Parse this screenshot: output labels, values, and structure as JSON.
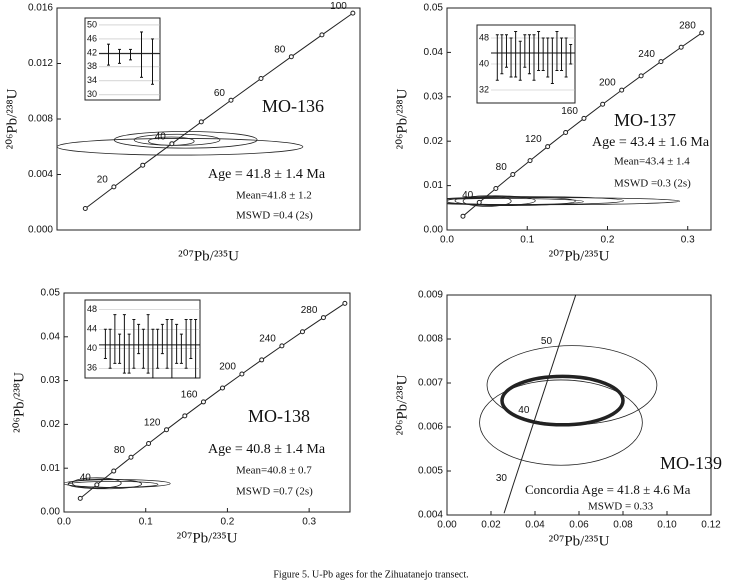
{
  "caption": "Figure 5. U-Pb ages for the Zihuatanejo transect.",
  "chart_data": [
    {
      "type": "concordia",
      "title": "MO-136",
      "xlabel": "²⁰⁷Pb/²³⁵U",
      "ylabel": "²⁰⁶Pb/²³⁸U",
      "annotations": [
        "Age = 41.8 ± 1.4 Ma",
        "Mean=41.8 ± 1.2",
        "MSWD =0.4 (2s)"
      ],
      "xlim": [
        0,
        0.106
      ],
      "ylim": [
        0,
        0.016
      ],
      "yticks": [
        {
          "value": 0,
          "label": "0.000"
        },
        {
          "value": 0.004,
          "label": "0.004"
        },
        {
          "value": 0.008,
          "label": "0.008"
        },
        {
          "value": 0.012,
          "label": "0.012"
        },
        {
          "value": 0.016,
          "label": "0.016"
        }
      ],
      "concordia": {
        "markers": true,
        "x": [
          0.0099,
          0.01989,
          0.02999,
          0.04018,
          0.05048,
          0.06087,
          0.07137,
          0.08198,
          0.09268,
          0.1035
        ],
        "y": [
          0.00155,
          0.00311,
          0.00467,
          0.00622,
          0.00779,
          0.00935,
          0.01092,
          0.01249,
          0.01406,
          0.01563
        ],
        "labels": [
          null,
          20,
          null,
          40,
          null,
          60,
          null,
          80,
          null,
          100
        ]
      },
      "ellipses": [
        {
          "cx": 0.043,
          "cy": 0.006,
          "rx": 0.043,
          "ry": 0.0006,
          "bold": false
        },
        {
          "cx": 0.045,
          "cy": 0.0065,
          "rx": 0.025,
          "ry": 0.0006,
          "bold": false
        },
        {
          "cx": 0.042,
          "cy": 0.0065,
          "rx": 0.015,
          "ry": 0.0004,
          "bold": false
        },
        {
          "cx": 0.04,
          "cy": 0.0064,
          "rx": 0.008,
          "ry": 0.0003,
          "bold": false
        }
      ],
      "inset": {
        "ylim": [
          28.5,
          52
        ],
        "yticks": [
          30,
          34,
          38,
          42,
          46,
          50
        ],
        "mean": 41.8,
        "values": [
          41.5,
          41,
          41.5,
          41.5,
          39.5
        ],
        "errors": [
          3,
          2,
          1.5,
          6.5,
          6.5
        ]
      }
    },
    {
      "type": "concordia",
      "title": "MO-137",
      "xlabel": "²⁰⁷Pb/²³⁵U",
      "ylabel": "²⁰⁶Pb/²³⁸U",
      "annotations": [
        "Age = 43.4 ± 1.6 Ma",
        "Mean=43.4 ± 1.4",
        "MSWD =0.3 (2s)"
      ],
      "xlim": [
        0,
        0.329
      ],
      "ylim": [
        0,
        0.05
      ],
      "xticks": [
        {
          "value": 0,
          "label": "0.0"
        },
        0.1,
        0.2,
        0.3
      ],
      "yticks": [
        {
          "value": 0,
          "label": "0.00"
        },
        0.01,
        0.02,
        0.03,
        0.04,
        0.05
      ],
      "concordia": {
        "markers": true,
        "x": [
          0.01989,
          0.04018,
          0.06087,
          0.08198,
          0.1035,
          0.12545,
          0.14784,
          0.17067,
          0.19396,
          0.2177,
          0.24191,
          0.26664,
          0.29183,
          0.31751
        ],
        "y": [
          0.00311,
          0.00622,
          0.00935,
          0.01249,
          0.01563,
          0.01879,
          0.02196,
          0.02513,
          0.02832,
          0.03151,
          0.03472,
          0.03793,
          0.04116,
          0.04439
        ],
        "labels": [
          null,
          40,
          null,
          80,
          null,
          120,
          null,
          160,
          null,
          200,
          null,
          240,
          null,
          280
        ]
      },
      "ellipses": [
        {
          "cx": 0.12,
          "cy": 0.0065,
          "rx": 0.17,
          "ry": 0.0008,
          "bold": false
        },
        {
          "cx": 0.1,
          "cy": 0.0066,
          "rx": 0.12,
          "ry": 0.0009,
          "bold": false
        },
        {
          "cx": 0.08,
          "cy": 0.0065,
          "rx": 0.08,
          "ry": 0.001,
          "bold": false
        },
        {
          "cx": 0.06,
          "cy": 0.0066,
          "rx": 0.05,
          "ry": 0.0011,
          "bold": false
        },
        {
          "cx": 0.05,
          "cy": 0.0065,
          "rx": 0.03,
          "ry": 0.0012,
          "bold": false
        },
        {
          "cx": 0.07,
          "cy": 0.0064,
          "rx": 0.1,
          "ry": 0.0007,
          "bold": false
        }
      ],
      "inset": {
        "ylim": [
          28,
          52
        ],
        "yticks": [
          32,
          40,
          48
        ],
        "mean": 43.4,
        "values": [
          42,
          43,
          44,
          42,
          43,
          41,
          44,
          43,
          42,
          44,
          43,
          42,
          41,
          44,
          43,
          42,
          43
        ],
        "errors": [
          7,
          6,
          5,
          6,
          7,
          6,
          5,
          6,
          7,
          6,
          5,
          6,
          7,
          6,
          5,
          6,
          3
        ]
      }
    },
    {
      "type": "concordia",
      "title": "MO-138",
      "xlabel": "²⁰⁷Pb/²³⁵U",
      "ylabel": "²⁰⁶Pb/²³⁸U",
      "annotations": [
        "Age = 40.8 ± 1.4 Ma",
        "Mean=40.8 ± 0.7",
        "MSWD =0.7 (2s)"
      ],
      "xlim": [
        0,
        0.35
      ],
      "ylim": [
        0,
        0.05
      ],
      "xticks": [
        {
          "value": 0,
          "label": "0.0"
        },
        0.1,
        0.2,
        0.3
      ],
      "yticks": [
        {
          "value": 0,
          "label": "0.00"
        },
        0.01,
        0.02,
        0.03,
        0.04,
        0.05
      ],
      "concordia": {
        "markers": true,
        "x": [
          0.01989,
          0.04018,
          0.06087,
          0.08198,
          0.1035,
          0.12545,
          0.14784,
          0.17067,
          0.19396,
          0.2177,
          0.24191,
          0.26664,
          0.29183,
          0.31751,
          0.34374
        ],
        "y": [
          0.00311,
          0.00622,
          0.00935,
          0.01249,
          0.01563,
          0.01879,
          0.02196,
          0.02513,
          0.02832,
          0.03151,
          0.03472,
          0.03793,
          0.04116,
          0.04439,
          0.04764
        ],
        "labels": [
          null,
          40,
          null,
          80,
          null,
          120,
          null,
          160,
          null,
          200,
          null,
          240,
          null,
          280,
          null
        ]
      },
      "ellipses": [
        {
          "cx": 0.065,
          "cy": 0.0065,
          "rx": 0.065,
          "ry": 0.0009,
          "bold": false
        },
        {
          "cx": 0.05,
          "cy": 0.0064,
          "rx": 0.045,
          "ry": 0.0011,
          "bold": false
        },
        {
          "cx": 0.04,
          "cy": 0.0066,
          "rx": 0.03,
          "ry": 0.0012,
          "bold": false
        },
        {
          "cx": 0.06,
          "cy": 0.0063,
          "rx": 0.055,
          "ry": 0.0007,
          "bold": false
        }
      ],
      "inset": {
        "ylim": [
          34,
          50
        ],
        "yticks": [
          36,
          40,
          44,
          48
        ],
        "mean": 40.8,
        "values": [
          41,
          40,
          42,
          40,
          41,
          39,
          41,
          42,
          40,
          41,
          39,
          40,
          42,
          41,
          40,
          41,
          40,
          41,
          42,
          40
        ],
        "errors": [
          3,
          4,
          5,
          3,
          6,
          4,
          5,
          3,
          4,
          6,
          5,
          4,
          3,
          5,
          6,
          4,
          3,
          5,
          4,
          6
        ]
      }
    },
    {
      "type": "concordia",
      "title": "MO-139",
      "xlabel": "²⁰⁷Pb/²³⁵U",
      "ylabel": "²⁰⁶Pb/²³⁸U",
      "annotations": [
        "Concordia Age = 41.8 ± 4.6 Ma",
        "MSWD = 0.33"
      ],
      "xlim": [
        0,
        0.12
      ],
      "ylim": [
        0.004,
        0.009
      ],
      "xticks": [
        {
          "value": 0,
          "label": "0.00"
        },
        0.02,
        0.04,
        0.06,
        0.08,
        {
          "value": 0.1,
          "label": "0.10"
        },
        0.12
      ],
      "yticks": [
        0.004,
        0.005,
        0.006,
        0.007,
        0.008,
        0.009
      ],
      "concordia": {
        "markers": false,
        "x": [
          0.02594,
          0.02999,
          0.04018,
          0.05048,
          0.05878
        ],
        "y": [
          0.00404,
          0.00467,
          0.00622,
          0.00779,
          0.00904
        ],
        "labels": [
          null,
          30,
          40,
          50,
          null
        ]
      },
      "ellipses": [
        {
          "cx": 0.0568,
          "cy": 0.00695,
          "rx": 0.0386,
          "ry": 0.0009,
          "bold": false
        },
        {
          "cx": 0.0518,
          "cy": 0.0061,
          "rx": 0.037,
          "ry": 0.00097,
          "bold": false
        },
        {
          "cx": 0.0525,
          "cy": 0.0066,
          "rx": 0.0275,
          "ry": 0.00055,
          "bold": true
        }
      ]
    }
  ]
}
